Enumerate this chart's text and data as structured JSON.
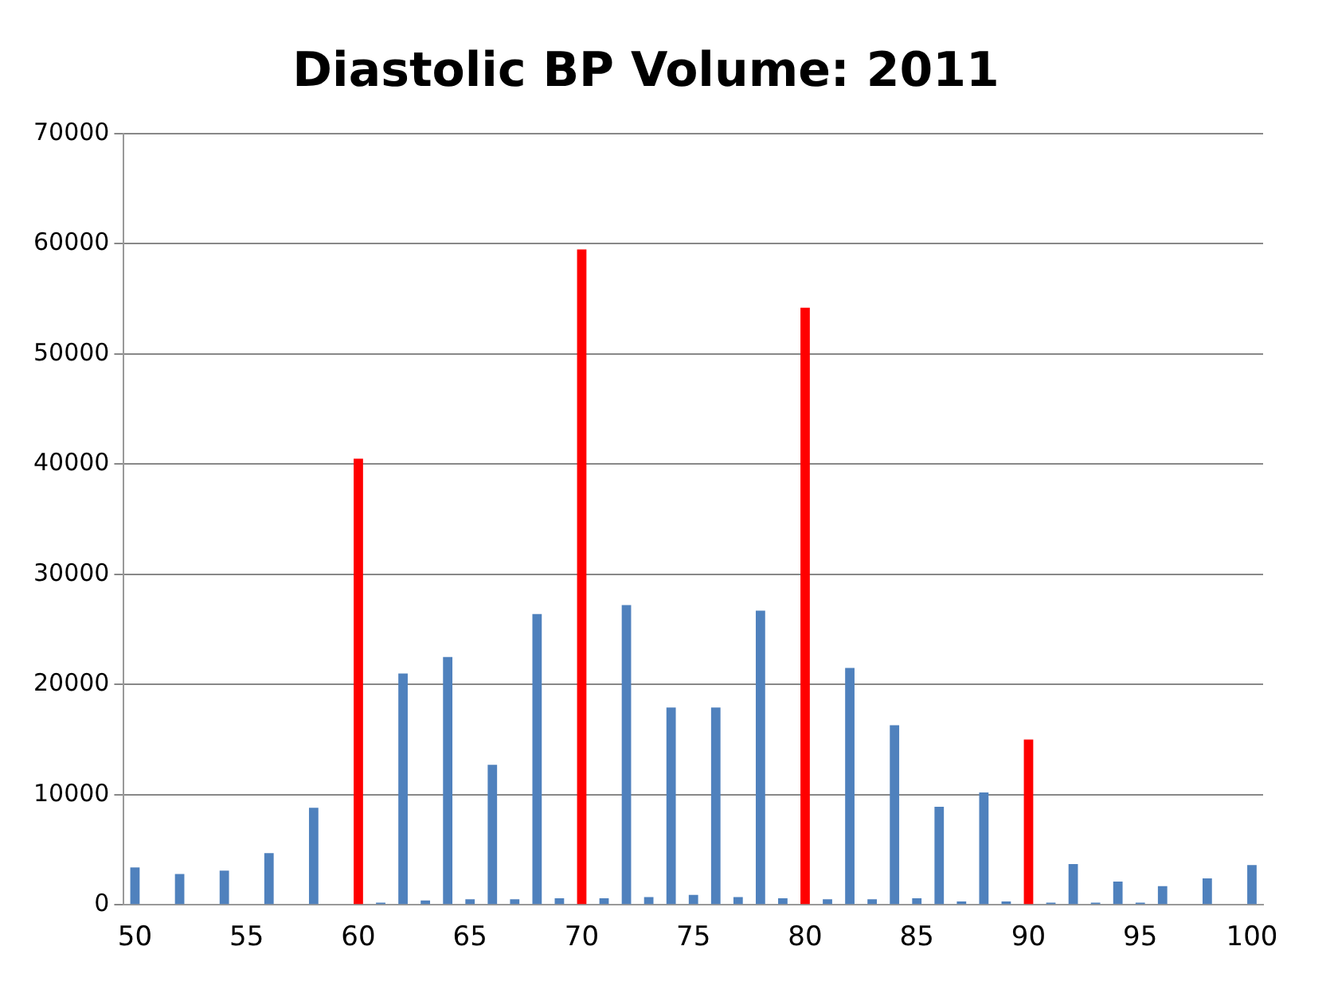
{
  "chart_data": {
    "type": "bar",
    "title": "Diastolic BP Volume: 2011",
    "categories": [
      "50",
      null,
      null,
      null,
      null,
      "55",
      null,
      null,
      null,
      null,
      "60",
      null,
      null,
      null,
      null,
      "65",
      null,
      null,
      null,
      null,
      "70",
      null,
      null,
      null,
      null,
      "75",
      null,
      null,
      null,
      null,
      "80",
      null,
      null,
      null,
      null,
      "85",
      null,
      null,
      null,
      null,
      "90",
      null,
      null,
      null,
      null,
      "95",
      null,
      null,
      null,
      null,
      "100"
    ],
    "values": [
      3400,
      0,
      2800,
      0,
      3100,
      0,
      4700,
      0,
      8800,
      0,
      40500,
      200,
      21000,
      400,
      22500,
      500,
      12700,
      500,
      26400,
      600,
      59500,
      600,
      27200,
      700,
      17900,
      900,
      17900,
      700,
      26700,
      600,
      54200,
      500,
      21500,
      500,
      16300,
      600,
      8900,
      300,
      10200,
      300,
      15000,
      200,
      3700,
      200,
      2100,
      200,
      1700,
      0,
      2400,
      0,
      3600
    ],
    "colors": [
      "#4f81bd",
      "#4f81bd",
      "#4f81bd",
      "#4f81bd",
      "#4f81bd",
      "#4f81bd",
      "#4f81bd",
      "#4f81bd",
      "#4f81bd",
      "#4f81bd",
      "#ff0000",
      "#4f81bd",
      "#4f81bd",
      "#4f81bd",
      "#4f81bd",
      "#4f81bd",
      "#4f81bd",
      "#4f81bd",
      "#4f81bd",
      "#4f81bd",
      "#ff0000",
      "#4f81bd",
      "#4f81bd",
      "#4f81bd",
      "#4f81bd",
      "#4f81bd",
      "#4f81bd",
      "#4f81bd",
      "#4f81bd",
      "#4f81bd",
      "#ff0000",
      "#4f81bd",
      "#4f81bd",
      "#4f81bd",
      "#4f81bd",
      "#4f81bd",
      "#4f81bd",
      "#4f81bd",
      "#4f81bd",
      "#4f81bd",
      "#ff0000",
      "#4f81bd",
      "#4f81bd",
      "#4f81bd",
      "#4f81bd",
      "#4f81bd",
      "#4f81bd",
      "#4f81bd",
      "#4f81bd",
      "#4f81bd",
      "#4f81bd"
    ],
    "ylim": [
      0,
      70000
    ],
    "yticks": [
      0,
      10000,
      20000,
      30000,
      40000,
      50000,
      60000,
      70000
    ],
    "grid": "y",
    "legend": false
  }
}
